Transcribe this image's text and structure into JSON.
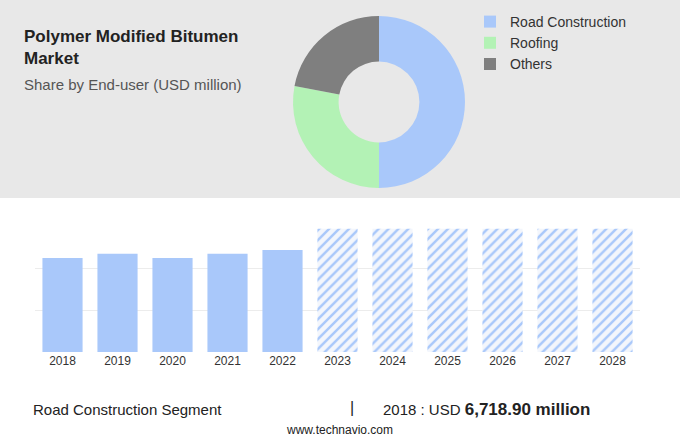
{
  "chart_data": [
    {
      "type": "pie",
      "title": "Polymer Modified Bitumen Market",
      "subtitle": "Share by End-user (USD million)",
      "categories": [
        "Road Construction",
        "Roofing",
        "Others"
      ],
      "values": [
        50,
        28,
        22
      ],
      "colors": [
        "#a9c8fa",
        "#b3f2b5",
        "#7f7f7f"
      ],
      "legend": "upper right"
    },
    {
      "type": "bar",
      "categories": [
        "2018",
        "2019",
        "2020",
        "2021",
        "2022",
        "2023",
        "2024",
        "2025",
        "2026",
        "2027",
        "2028"
      ],
      "series": [
        {
          "color": "#a9c8fa",
          "values": [
            6718.9,
            7010,
            6720,
            7010,
            7290,
            null,
            null,
            null,
            null,
            null,
            null
          ]
        },
        {
          "color": "#a9c8fa",
          "marker": "hatched",
          "values": [
            null,
            null,
            null,
            null,
            null,
            8800,
            8800,
            8800,
            8800,
            8800,
            8800
          ]
        }
      ],
      "ylim": [
        0,
        9000
      ],
      "yticks": [
        0,
        3000,
        6000,
        9000
      ],
      "grid": true,
      "tick_labels": "x"
    }
  ],
  "footer": {
    "label": "Road Construction Segment",
    "separator": "|",
    "prefix": "2018 : USD",
    "value": "6,718.90 million"
  },
  "source": "www.technavio.com"
}
